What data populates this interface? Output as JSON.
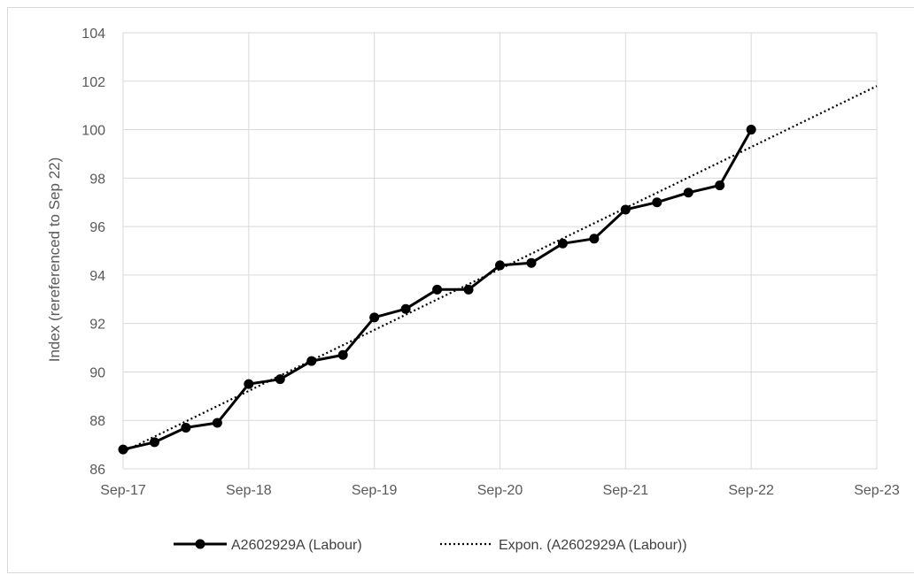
{
  "chart_data": {
    "type": "line",
    "title": "",
    "xlabel": "",
    "ylabel": "Index (rereferenced to Sep 22)",
    "x_axis": {
      "type": "date",
      "range": [
        "2017-09",
        "2023-09"
      ],
      "tick_labels": [
        "Sep-17",
        "Sep-18",
        "Sep-19",
        "Sep-20",
        "Sep-21",
        "Sep-22",
        "Sep-23"
      ],
      "tick_dates": [
        "2017-09",
        "2018-09",
        "2019-09",
        "2020-09",
        "2021-09",
        "2022-09",
        "2023-09"
      ]
    },
    "y_axis": {
      "range": [
        86,
        104
      ],
      "ticks": [
        86,
        88,
        90,
        92,
        94,
        96,
        98,
        100,
        102,
        104
      ]
    },
    "grid": "on",
    "legend_position": "bottom",
    "series": [
      {
        "name": "A2602929A (Labour)",
        "style": "solid-with-markers",
        "color": "#000000",
        "x": [
          "2017-09",
          "2017-12",
          "2018-03",
          "2018-06",
          "2018-09",
          "2018-12",
          "2019-03",
          "2019-06",
          "2019-09",
          "2019-12",
          "2020-03",
          "2020-06",
          "2020-09",
          "2020-12",
          "2021-03",
          "2021-06",
          "2021-09",
          "2021-12",
          "2022-03",
          "2022-06",
          "2022-09"
        ],
        "values": [
          86.8,
          87.1,
          87.7,
          87.9,
          89.5,
          89.7,
          90.45,
          90.7,
          92.25,
          92.6,
          93.4,
          93.4,
          94.4,
          94.5,
          95.3,
          95.5,
          96.7,
          97.0,
          97.4,
          97.7,
          100.0
        ]
      },
      {
        "name": "Expon. (A2602929A (Labour))",
        "style": "dotted",
        "color": "#000000",
        "x": [
          "2017-09",
          "2023-09"
        ],
        "values": [
          86.7,
          101.8
        ]
      }
    ]
  }
}
